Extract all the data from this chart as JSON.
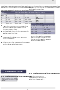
{
  "page_bg": "#ffffff",
  "header_bar_color": "#e8e8e8",
  "table_header_color": "#c8c8d8",
  "table_subheader_color": "#d8d8e8",
  "table_row_colors": [
    "#ffffff",
    "#ebebf3",
    "#ffffff",
    "#ebebf3"
  ],
  "border_color": "#999999",
  "dark_header_color": "#5a5a7a",
  "right_table_header_color": "#c0c0d0",
  "right_table_row_colors": [
    "#d4d4e8",
    "#b8b8d0",
    "#d4d4e8",
    "#b8b8d0"
  ],
  "section_bg": "#3a3a5a",
  "warning_bg": "#e0e0e8",
  "text_color": "#111111",
  "white": "#ffffff",
  "gray_line": "#aaaaaa"
}
